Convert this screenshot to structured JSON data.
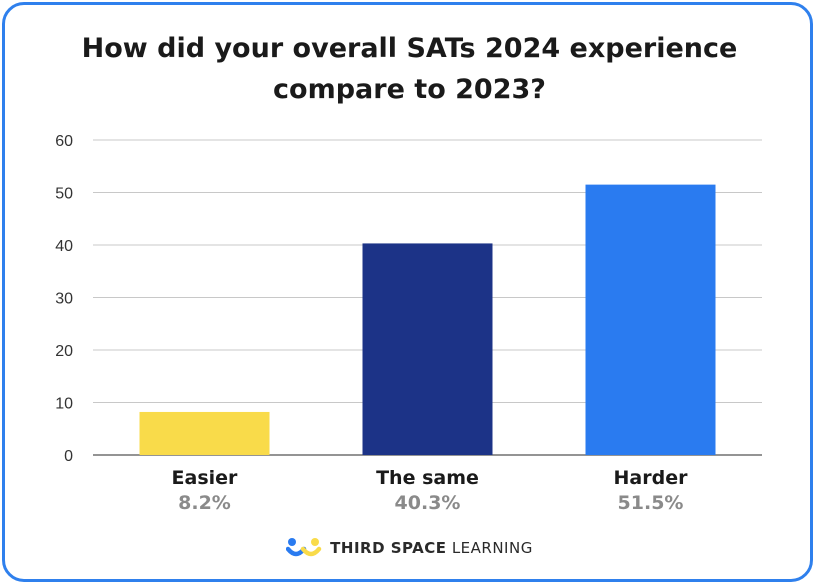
{
  "chart_data": {
    "type": "bar",
    "title_lines": [
      "How did your overall SATs 2024 experience",
      "compare to 2023?"
    ],
    "categories": [
      "Easier",
      "The same",
      "Harder"
    ],
    "values": [
      8.2,
      40.3,
      51.5
    ],
    "value_labels": [
      "8.2%",
      "40.3%",
      "51.5%"
    ],
    "bar_colors": [
      "#f9db4a",
      "#1c3387",
      "#2a7bf0"
    ],
    "yticks": [
      "0",
      "10",
      "20",
      "30",
      "40",
      "50",
      "60"
    ],
    "ylim": [
      0,
      60
    ],
    "grid": true
  },
  "footer": {
    "brand_bold": "THIRD SPACE",
    "brand_light": "LEARNING",
    "logo_colors": [
      "#2a7bf0",
      "#f9db4a"
    ]
  },
  "frame_color": "#2f80ed"
}
